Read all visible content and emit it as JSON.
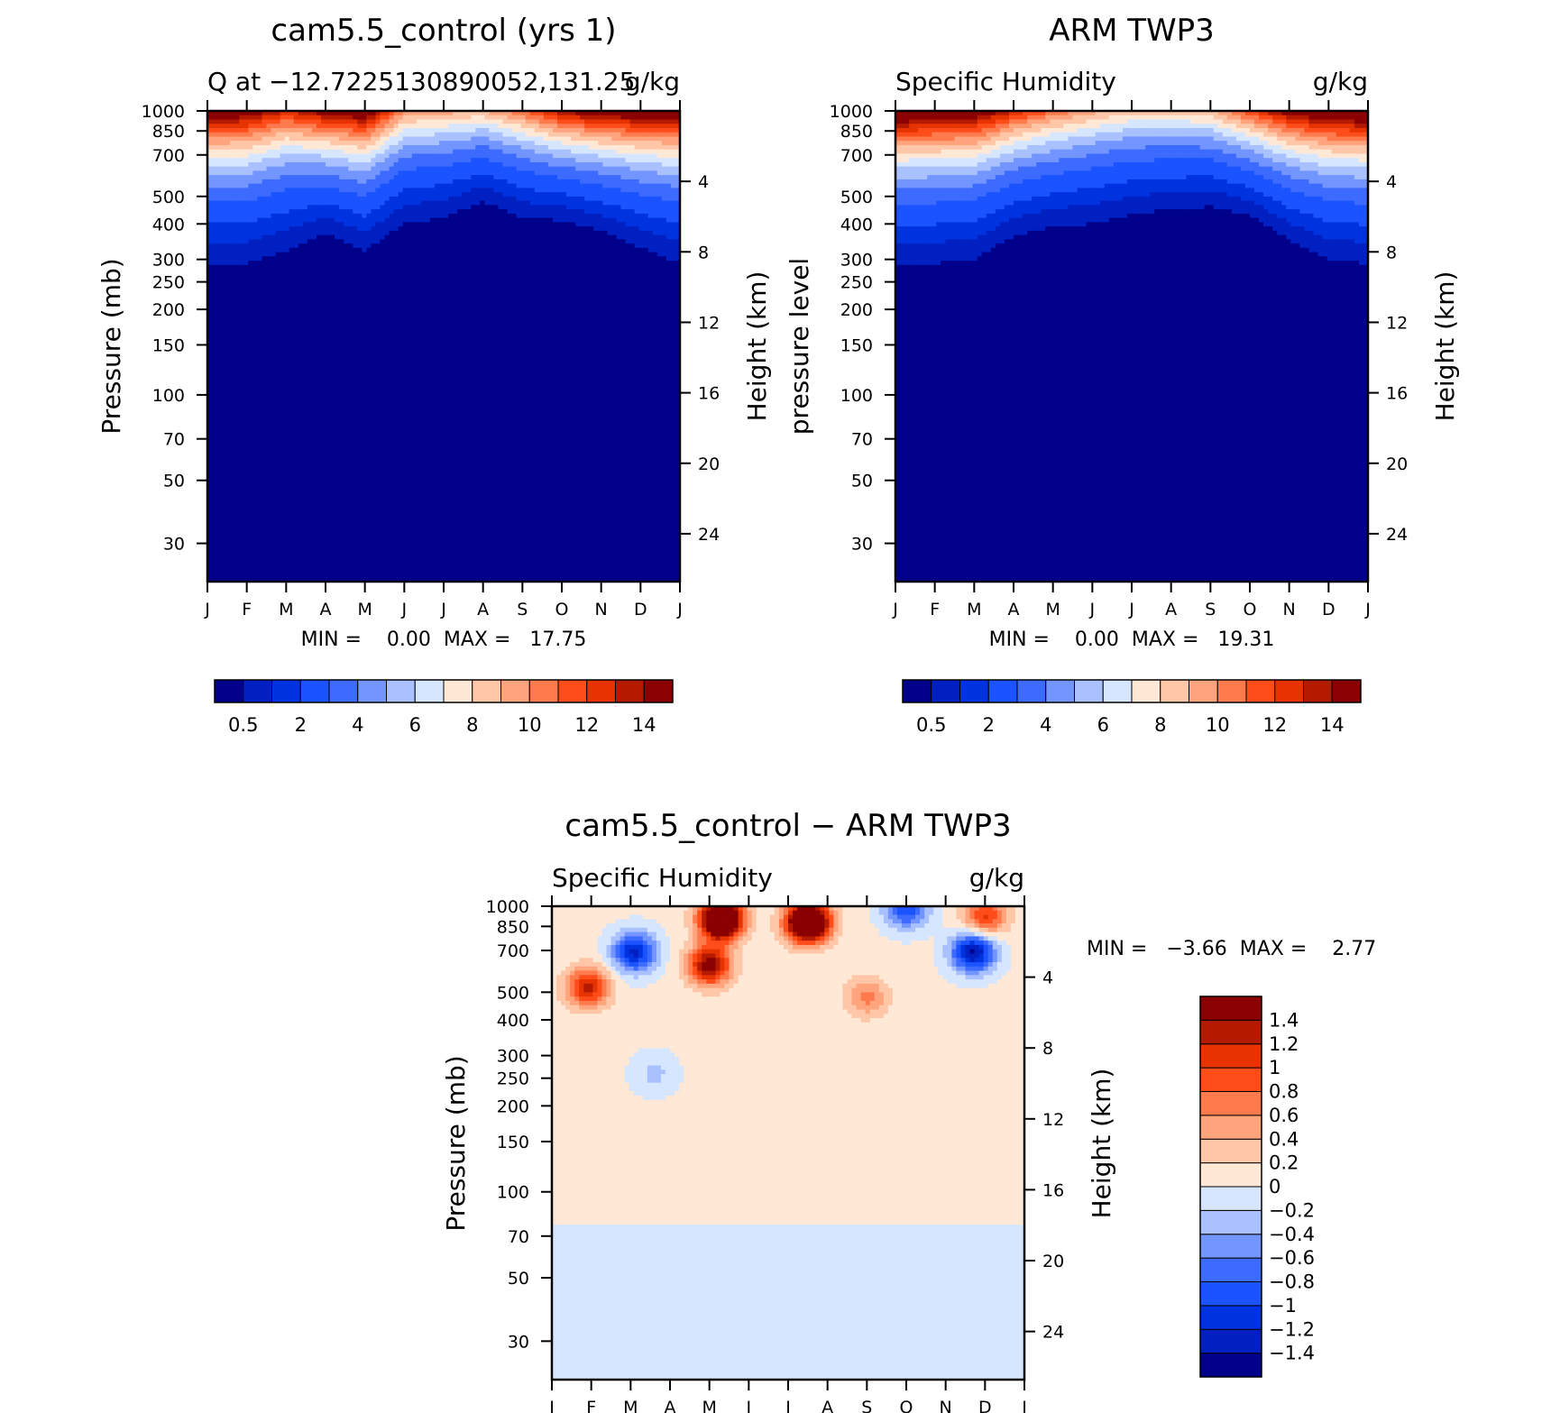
{
  "chart_data": [
    {
      "type": "heatmap",
      "id": "model",
      "title": "cam5.5_control (yrs 1)",
      "subtitle_left": "Q at −12.7225130890052,131.25",
      "subtitle_right": "g/kg",
      "ylabel_left": "Pressure (mb)",
      "ylabel_right": "Height (km)",
      "x_ticks": [
        "J",
        "F",
        "M",
        "A",
        "M",
        "J",
        "J",
        "A",
        "S",
        "O",
        "N",
        "D",
        "J"
      ],
      "pressure_ticks": [
        "30",
        "50",
        "70",
        "100",
        "150",
        "200",
        "250",
        "300",
        "400",
        "500",
        "700",
        "850",
        "1000"
      ],
      "pressure_values": [
        30,
        50,
        70,
        100,
        150,
        200,
        250,
        300,
        400,
        500,
        700,
        850,
        1000
      ],
      "height_ticks": [
        "24",
        "20",
        "16",
        "12",
        "8",
        "4"
      ],
      "height_values": [
        24,
        20,
        16,
        12,
        8,
        4
      ],
      "ylim": [
        1000,
        22
      ],
      "stats_text": "MIN =    0.00  MAX =   17.75",
      "min": 0.0,
      "max": 17.75,
      "colorbar_labels": [
        "0.5",
        "2",
        "4",
        "6",
        "8",
        "10",
        "12",
        "14"
      ],
      "colorbar_levels": [
        0.25,
        0.5,
        1,
        2,
        3,
        4,
        5,
        6,
        7,
        8,
        9,
        10,
        11,
        12,
        13,
        14
      ],
      "colorbar_colors": [
        "#00008b",
        "#0020c2",
        "#0033e0",
        "#1a53ff",
        "#3d6bff",
        "#7395ff",
        "#a9c1ff",
        "#d6e6ff",
        "#ffe8d6",
        "#ffc7a8",
        "#ffa47d",
        "#ff7a4d",
        "#ff4d1a",
        "#e63300",
        "#b31a00",
        "#8b0000"
      ],
      "moisture_level_top_mb": [
        290,
        290,
        320,
        370,
        320,
        400,
        420,
        480,
        420,
        410,
        380,
        330,
        290
      ],
      "surface_max": [
        15,
        14.5,
        12,
        14,
        15,
        9,
        8.5,
        8,
        10,
        13,
        14.5,
        15,
        15
      ]
    },
    {
      "type": "heatmap",
      "id": "obs",
      "title": "ARM TWP3",
      "subtitle_left": "Specific Humidity",
      "subtitle_right": "g/kg",
      "ylabel_left": "pressure level",
      "ylabel_right": "Height (km)",
      "x_ticks": [
        "J",
        "F",
        "M",
        "A",
        "M",
        "J",
        "J",
        "A",
        "S",
        "O",
        "N",
        "D",
        "J"
      ],
      "pressure_ticks": [
        "30",
        "50",
        "70",
        "100",
        "150",
        "200",
        "250",
        "300",
        "400",
        "500",
        "700",
        "850",
        "1000"
      ],
      "pressure_values": [
        30,
        50,
        70,
        100,
        150,
        200,
        250,
        300,
        400,
        500,
        700,
        850,
        1000
      ],
      "height_ticks": [
        "24",
        "20",
        "16",
        "12",
        "8",
        "4"
      ],
      "height_values": [
        24,
        20,
        16,
        12,
        8,
        4
      ],
      "ylim": [
        1000,
        22
      ],
      "stats_text": "MIN =    0.00  MAX =   19.31",
      "min": 0.0,
      "max": 19.31,
      "colorbar_labels": [
        "0.5",
        "2",
        "4",
        "6",
        "8",
        "10",
        "12",
        "14"
      ],
      "colorbar_levels": [
        0.25,
        0.5,
        1,
        2,
        3,
        4,
        5,
        6,
        7,
        8,
        9,
        10,
        11,
        12,
        13,
        14
      ],
      "colorbar_colors": [
        "#00008b",
        "#0020c2",
        "#0033e0",
        "#1a53ff",
        "#3d6bff",
        "#7395ff",
        "#a9c1ff",
        "#d6e6ff",
        "#ffe8d6",
        "#ffc7a8",
        "#ffa47d",
        "#ff7a4d",
        "#ff4d1a",
        "#e63300",
        "#b31a00",
        "#8b0000"
      ],
      "moisture_level_top_mb": [
        290,
        290,
        300,
        360,
        390,
        400,
        430,
        450,
        460,
        430,
        350,
        300,
        290
      ],
      "surface_max": [
        16,
        15.5,
        15,
        12,
        10,
        8.5,
        7.5,
        7.5,
        8,
        11,
        14,
        15.5,
        16
      ]
    },
    {
      "type": "heatmap",
      "id": "diff",
      "title": "cam5.5_control − ARM TWP3",
      "subtitle_left": "Specific Humidity",
      "subtitle_right": "g/kg",
      "ylabel_left": "Pressure (mb)",
      "ylabel_right": "Height (km)",
      "x_ticks": [
        "J",
        "F",
        "M",
        "A",
        "M",
        "J",
        "J",
        "A",
        "S",
        "O",
        "N",
        "D",
        "J"
      ],
      "pressure_ticks": [
        "30",
        "50",
        "70",
        "100",
        "150",
        "200",
        "250",
        "300",
        "400",
        "500",
        "700",
        "850",
        "1000"
      ],
      "pressure_values": [
        30,
        50,
        70,
        100,
        150,
        200,
        250,
        300,
        400,
        500,
        700,
        850,
        1000
      ],
      "height_ticks": [
        "24",
        "20",
        "16",
        "12",
        "8",
        "4"
      ],
      "height_values": [
        24,
        20,
        16,
        12,
        8,
        4
      ],
      "ylim": [
        1000,
        22
      ],
      "stats_text": "MIN =   −3.66  MAX =    2.77",
      "min": -3.66,
      "max": 2.77,
      "colorbar_labels": [
        "1.4",
        "1.2",
        "1",
        "0.8",
        "0.6",
        "0.4",
        "0.2",
        "0",
        "−0.2",
        "−0.4",
        "−0.6",
        "−0.8",
        "−1",
        "−1.2",
        "−1.4"
      ],
      "colorbar_levels": [
        -1.4,
        -1.2,
        -1,
        -0.8,
        -0.6,
        -0.4,
        -0.2,
        0,
        0.2,
        0.4,
        0.6,
        0.8,
        1,
        1.2,
        1.4
      ],
      "colorbar_colors": [
        "#00008b",
        "#0020c2",
        "#0033e0",
        "#1a53ff",
        "#3d6bff",
        "#7395ff",
        "#a9c1ff",
        "#d6e6ff",
        "#ffe8d6",
        "#ffc7a8",
        "#ffa47d",
        "#ff7a4d",
        "#ff4d1a",
        "#e63300",
        "#b31a00",
        "#8b0000"
      ],
      "features": [
        {
          "month": 0.9,
          "pressure": 520,
          "value": 1.2
        },
        {
          "month": 2.1,
          "pressure": 690,
          "value": -1.3
        },
        {
          "month": 4.0,
          "pressure": 620,
          "value": 1.5
        },
        {
          "month": 4.3,
          "pressure": 900,
          "value": 2.5
        },
        {
          "month": 6.5,
          "pressure": 880,
          "value": 2.6
        },
        {
          "month": 8.0,
          "pressure": 480,
          "value": 0.6
        },
        {
          "month": 10.7,
          "pressure": 690,
          "value": -1.5
        },
        {
          "month": 11.0,
          "pressure": 920,
          "value": 1.0
        },
        {
          "month": 9.0,
          "pressure": 980,
          "value": -1.0
        },
        {
          "month": 2.6,
          "pressure": 260,
          "value": -0.3
        }
      ]
    }
  ]
}
